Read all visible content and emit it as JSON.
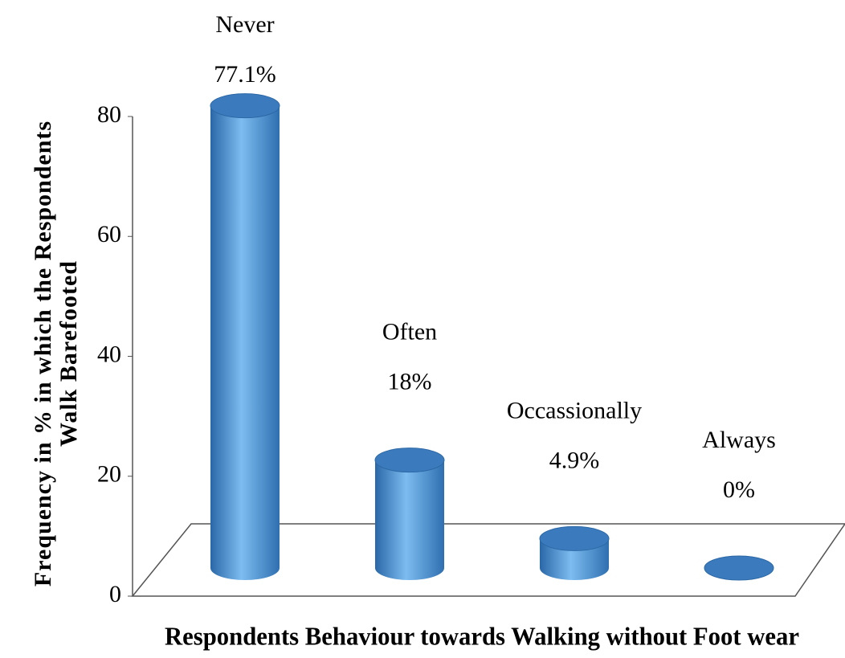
{
  "chart_data": {
    "type": "bar",
    "y_label": "Frequency in % in which the Respondents Walk Barefooted",
    "x_label": "Respondents Behaviour towards Walking without Foot wear",
    "categories": [
      "Never",
      "Often",
      "Occassionally",
      "Always"
    ],
    "values": [
      77.1,
      18,
      4.9,
      0
    ],
    "value_labels": [
      "77.1%",
      "18%",
      "4.9%",
      "0%"
    ],
    "color": "#4a90d9",
    "ylim": [
      0,
      80
    ],
    "yticks": [
      0,
      20,
      40,
      60,
      80
    ],
    "grid": false
  }
}
